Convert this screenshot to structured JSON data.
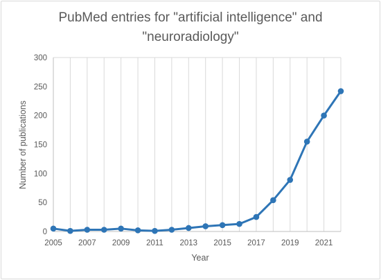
{
  "chart_data": {
    "type": "line",
    "title_line1": "PubMed entries for \"artificial intelligence\" and",
    "title_line2": "\"neuroradiology\"",
    "xlabel": "Year",
    "ylabel": "Number of publications",
    "ylim": [
      0,
      300
    ],
    "y_ticks": [
      0,
      50,
      100,
      150,
      200,
      250,
      300
    ],
    "x_ticks": [
      2005,
      2007,
      2009,
      2011,
      2013,
      2015,
      2017,
      2019,
      2021
    ],
    "xlim": [
      2005,
      2022
    ],
    "grid": "vertical",
    "legend": "none",
    "series": [
      {
        "color": "#2e75b6",
        "x": [
          2005,
          2006,
          2007,
          2008,
          2009,
          2010,
          2011,
          2012,
          2013,
          2014,
          2015,
          2016,
          2017,
          2018,
          2019,
          2020,
          2021,
          2022
        ],
        "values": [
          5,
          1,
          3,
          3,
          5,
          2,
          1,
          3,
          6,
          9,
          11,
          13,
          25,
          54,
          89,
          155,
          200,
          242
        ]
      }
    ]
  }
}
